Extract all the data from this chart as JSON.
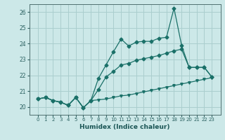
{
  "xlabel": "Humidex (Indice chaleur)",
  "ylabel": "",
  "background_color": "#cce8e8",
  "grid_color": "#aacece",
  "line_color": "#1a7068",
  "x": [
    0,
    1,
    2,
    3,
    4,
    5,
    6,
    7,
    8,
    9,
    10,
    11,
    12,
    13,
    14,
    15,
    16,
    17,
    18,
    19,
    20,
    21,
    22,
    23
  ],
  "line_max": [
    20.5,
    20.6,
    20.4,
    20.3,
    20.1,
    20.6,
    19.95,
    20.4,
    21.8,
    22.65,
    23.5,
    24.3,
    23.85,
    24.1,
    24.15,
    24.15,
    24.35,
    24.4,
    26.25,
    23.9,
    22.5,
    22.5,
    22.5,
    21.9
  ],
  "line_avg": [
    20.5,
    20.6,
    20.4,
    20.3,
    20.1,
    20.6,
    19.95,
    20.4,
    21.1,
    21.9,
    22.25,
    22.65,
    22.75,
    22.95,
    23.05,
    23.15,
    23.25,
    23.4,
    23.55,
    23.65,
    22.5,
    22.5,
    22.5,
    21.9
  ],
  "line_min": [
    20.5,
    20.6,
    20.4,
    20.3,
    20.1,
    20.6,
    19.95,
    20.4,
    20.45,
    20.5,
    20.6,
    20.7,
    20.75,
    20.85,
    20.95,
    21.05,
    21.15,
    21.25,
    21.35,
    21.45,
    21.55,
    21.65,
    21.75,
    21.85
  ],
  "ylim": [
    19.5,
    26.5
  ],
  "yticks": [
    20,
    21,
    22,
    23,
    24,
    25,
    26
  ],
  "xticks": [
    0,
    1,
    2,
    3,
    4,
    5,
    6,
    7,
    8,
    9,
    10,
    11,
    12,
    13,
    14,
    15,
    16,
    17,
    18,
    19,
    20,
    21,
    22,
    23
  ]
}
